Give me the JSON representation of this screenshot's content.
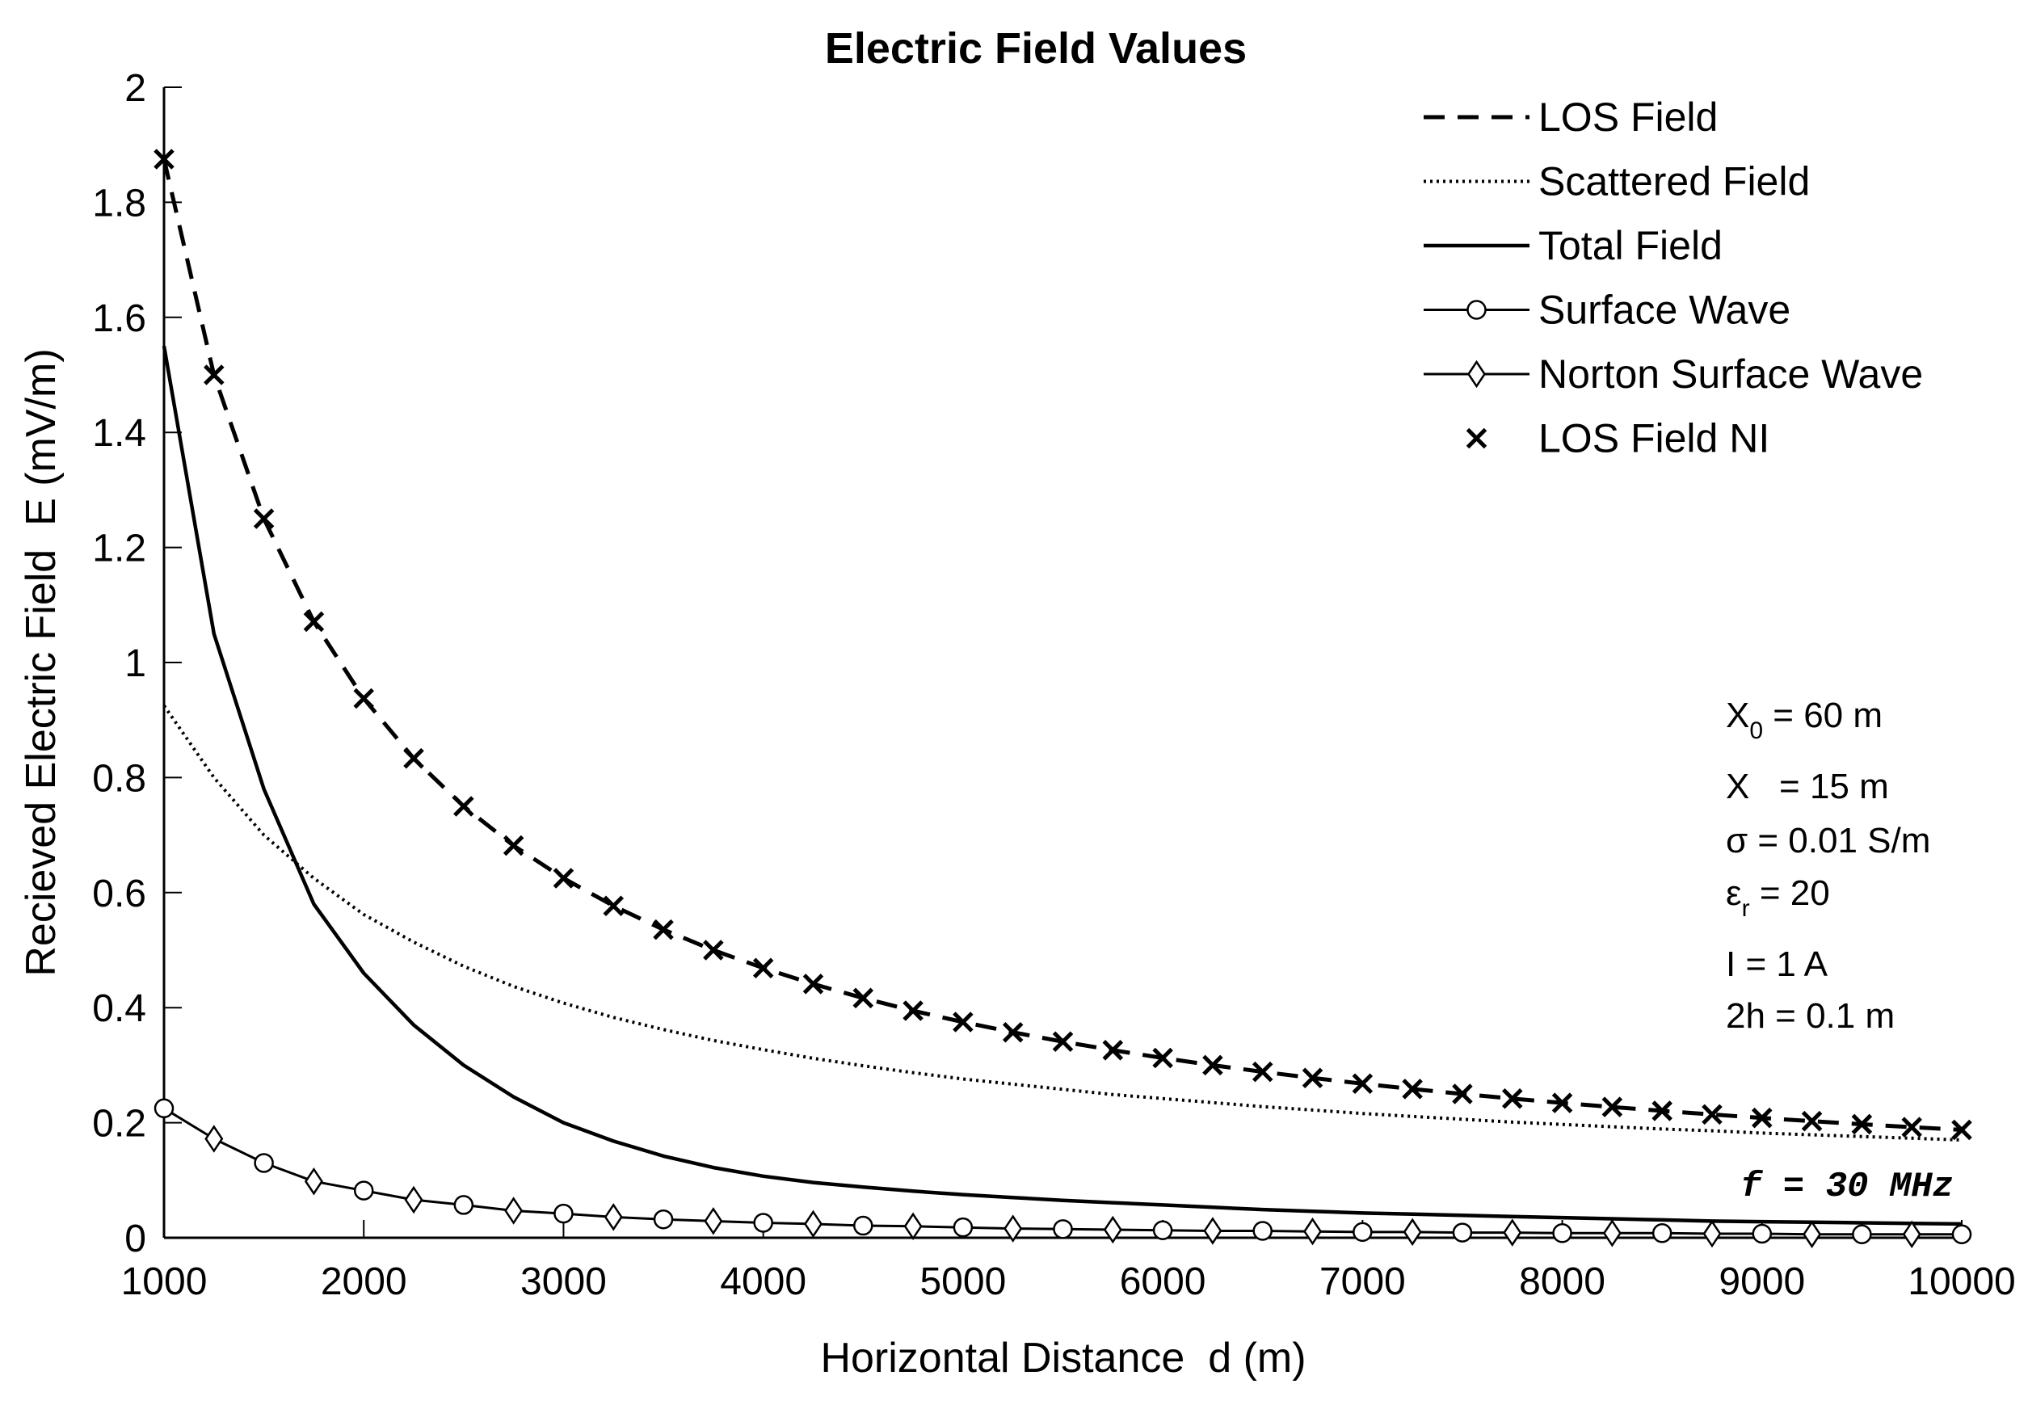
{
  "chart_data": {
    "type": "line",
    "title": "Electric Field Values",
    "xlabel": "Horizontal Distance  d (m)",
    "ylabel": "Recieved Electric Field  E (mV/m)",
    "xlim": [
      1000,
      10000
    ],
    "ylim": [
      0,
      2
    ],
    "xticks": [
      1000,
      2000,
      3000,
      4000,
      5000,
      6000,
      7000,
      8000,
      9000,
      10000
    ],
    "yticks": [
      0,
      0.2,
      0.4,
      0.6,
      0.8,
      1,
      1.2,
      1.4,
      1.6,
      1.8,
      2
    ],
    "ytick_labels": [
      "0",
      "0.2",
      "0.4",
      "0.6",
      "0.8",
      "1",
      "1.2",
      "1.4",
      "1.6",
      "1.8",
      "2"
    ],
    "grid": false,
    "legend_position": "top-right",
    "series": [
      {
        "name": "LOS Field",
        "style": "dashed",
        "marker": "none",
        "x": [
          1000,
          1250,
          1500,
          1750,
          2000,
          2250,
          2500,
          2750,
          3000,
          3250,
          3500,
          3750,
          4000,
          4250,
          4500,
          4750,
          5000,
          5250,
          5500,
          5750,
          6000,
          6250,
          6500,
          6750,
          7000,
          7250,
          7500,
          7750,
          8000,
          8250,
          8500,
          8750,
          9000,
          9250,
          9500,
          9750,
          10000
        ],
        "values": [
          1.875,
          1.5,
          1.25,
          1.071,
          0.9375,
          0.8333,
          0.75,
          0.6818,
          0.625,
          0.5769,
          0.5357,
          0.5,
          0.4688,
          0.4412,
          0.4167,
          0.3947,
          0.375,
          0.3571,
          0.3409,
          0.3261,
          0.3125,
          0.3,
          0.2885,
          0.2778,
          0.2679,
          0.2586,
          0.25,
          0.2419,
          0.2344,
          0.2273,
          0.2206,
          0.2143,
          0.2083,
          0.2027,
          0.1974,
          0.1923,
          0.1875
        ]
      },
      {
        "name": "Scattered Field",
        "style": "dotted",
        "marker": "none",
        "x": [
          1000,
          1250,
          1500,
          1750,
          2000,
          2250,
          2500,
          2750,
          3000,
          3250,
          3500,
          3750,
          4000,
          4250,
          4500,
          4750,
          5000,
          5250,
          5500,
          5750,
          6000,
          6250,
          6500,
          6750,
          7000,
          7250,
          7500,
          7750,
          8000,
          8250,
          8500,
          8750,
          9000,
          9250,
          9500,
          9750,
          10000
        ],
        "values": [
          0.925,
          0.8,
          0.7,
          0.625,
          0.562,
          0.514,
          0.472,
          0.437,
          0.408,
          0.383,
          0.362,
          0.343,
          0.327,
          0.312,
          0.299,
          0.287,
          0.276,
          0.267,
          0.258,
          0.249,
          0.242,
          0.235,
          0.228,
          0.222,
          0.216,
          0.211,
          0.206,
          0.201,
          0.197,
          0.193,
          0.189,
          0.186,
          0.182,
          0.179,
          0.176,
          0.173,
          0.17
        ]
      },
      {
        "name": "Total Field",
        "style": "solid",
        "marker": "none",
        "x": [
          1000,
          1250,
          1500,
          1750,
          2000,
          2250,
          2500,
          2750,
          3000,
          3250,
          3500,
          3750,
          4000,
          4250,
          4500,
          4750,
          5000,
          5250,
          5500,
          5750,
          6000,
          6250,
          6500,
          6750,
          7000,
          7250,
          7500,
          7750,
          8000,
          8250,
          8500,
          8750,
          9000,
          9250,
          9500,
          9750,
          10000
        ],
        "values": [
          1.55,
          1.05,
          0.78,
          0.58,
          0.46,
          0.37,
          0.3,
          0.245,
          0.2,
          0.168,
          0.142,
          0.122,
          0.107,
          0.096,
          0.088,
          0.081,
          0.075,
          0.07,
          0.065,
          0.061,
          0.057,
          0.053,
          0.049,
          0.046,
          0.043,
          0.041,
          0.039,
          0.037,
          0.035,
          0.033,
          0.031,
          0.029,
          0.028,
          0.027,
          0.026,
          0.025,
          0.024
        ]
      },
      {
        "name": "Surface Wave",
        "style": "solid",
        "marker": "circle",
        "x": [
          1000,
          1500,
          2000,
          2500,
          3000,
          3500,
          4000,
          4500,
          5000,
          5500,
          6000,
          6500,
          7000,
          7500,
          8000,
          8500,
          9000,
          9500,
          10000
        ],
        "values": [
          0.225,
          0.13,
          0.082,
          0.057,
          0.042,
          0.032,
          0.026,
          0.021,
          0.018,
          0.015,
          0.013,
          0.012,
          0.01,
          0.009,
          0.008,
          0.008,
          0.007,
          0.006,
          0.006
        ]
      },
      {
        "name": "Norton Surface Wave",
        "style": "solid",
        "marker": "diamond",
        "x": [
          1250,
          1750,
          2250,
          2750,
          3250,
          3750,
          4250,
          4750,
          5250,
          5750,
          6250,
          6750,
          7250,
          7750,
          8250,
          8750,
          9250,
          9750
        ],
        "values": [
          0.172,
          0.098,
          0.066,
          0.047,
          0.036,
          0.029,
          0.024,
          0.02,
          0.016,
          0.014,
          0.012,
          0.011,
          0.01,
          0.009,
          0.008,
          0.007,
          0.006,
          0.006
        ]
      },
      {
        "name": "LOS Field NI",
        "style": "none",
        "marker": "x",
        "x": [
          1000,
          1250,
          1500,
          1750,
          2000,
          2250,
          2500,
          2750,
          3000,
          3250,
          3500,
          3750,
          4000,
          4250,
          4500,
          4750,
          5000,
          5250,
          5500,
          5750,
          6000,
          6250,
          6500,
          6750,
          7000,
          7250,
          7500,
          7750,
          8000,
          8250,
          8500,
          8750,
          9000,
          9250,
          9500,
          9750,
          10000
        ],
        "values": [
          1.875,
          1.5,
          1.25,
          1.071,
          0.9375,
          0.8333,
          0.75,
          0.6818,
          0.625,
          0.5769,
          0.5357,
          0.5,
          0.4688,
          0.4412,
          0.4167,
          0.3947,
          0.375,
          0.3571,
          0.3409,
          0.3261,
          0.3125,
          0.3,
          0.2885,
          0.2778,
          0.2679,
          0.2586,
          0.25,
          0.2419,
          0.2344,
          0.2273,
          0.2206,
          0.2143,
          0.2083,
          0.2027,
          0.1974,
          0.1923,
          0.1875
        ]
      }
    ],
    "annotations": {
      "params": {
        "x0_base": "X",
        "x0_sub": "0",
        "x0_rest": " = 60 m",
        "x_line": "X   = 15 m",
        "sigma_line": "σ = 0.01 S/m",
        "eps_base": "ε",
        "eps_sub": "r",
        "eps_rest": " = 20",
        "current_line": "I = 1 A",
        "dipole_line": "2h = 0.1 m"
      },
      "frequency_label": "f = 30 MHz"
    }
  }
}
